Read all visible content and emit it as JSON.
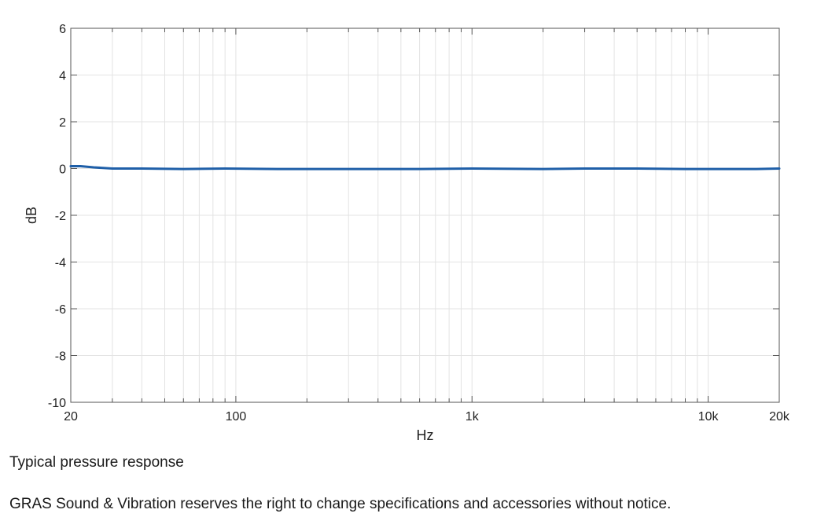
{
  "chart_data": {
    "type": "line",
    "title": "",
    "xlabel": "Hz",
    "ylabel": "dB",
    "x_scale": "log",
    "xlim": [
      20,
      20000
    ],
    "ylim": [
      -10,
      6
    ],
    "grid": true,
    "x_ticks": [
      {
        "value": 20,
        "label": "20"
      },
      {
        "value": 100,
        "label": "100"
      },
      {
        "value": 1000,
        "label": "1k"
      },
      {
        "value": 10000,
        "label": "10k"
      },
      {
        "value": 20000,
        "label": "20k"
      }
    ],
    "y_ticks": [
      {
        "value": 6,
        "label": "6"
      },
      {
        "value": 4,
        "label": "4"
      },
      {
        "value": 2,
        "label": "2"
      },
      {
        "value": 0,
        "label": "0"
      },
      {
        "value": -2,
        "label": "-2"
      },
      {
        "value": -4,
        "label": "-4"
      },
      {
        "value": -6,
        "label": "-6"
      },
      {
        "value": -8,
        "label": "-8"
      },
      {
        "value": -10,
        "label": "-10"
      }
    ],
    "series": [
      {
        "color": "#1f5fa8",
        "x": [
          20,
          22,
          25,
          30,
          40,
          60,
          90,
          150,
          300,
          600,
          1000,
          2000,
          3000,
          5000,
          8000,
          12000,
          16000,
          20000
        ],
        "y": [
          0.1,
          0.1,
          0.05,
          0.0,
          0.0,
          -0.02,
          0.0,
          -0.02,
          -0.02,
          -0.02,
          0.0,
          -0.02,
          0.0,
          0.0,
          -0.02,
          -0.02,
          -0.02,
          0.0
        ]
      }
    ]
  },
  "caption": "Typical pressure response",
  "notice": "GRAS Sound & Vibration reserves the right to change specifications and accessories without notice."
}
